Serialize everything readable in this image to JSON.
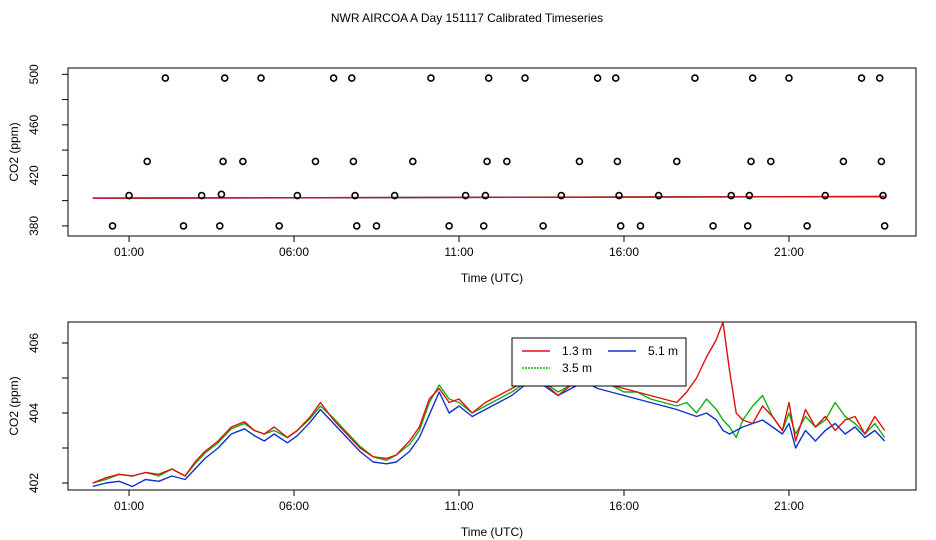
{
  "title": "NWR AIRCOA A  Day 151117  Calibrated Timeseries",
  "colors": {
    "red": "#e01010",
    "green": "#10b010",
    "blue": "#1030d0",
    "axis": "#000000"
  },
  "chart_data": [
    {
      "type": "scatter",
      "title": "NWR AIRCOA A  Day 151117  Calibrated Timeseries",
      "xlabel": "Time (UTC)",
      "ylabel": "CO2 (ppm)",
      "xlim": [
        -0.85,
        24.85
      ],
      "ylim": [
        372,
        505
      ],
      "x_ticks": [
        1,
        6,
        11,
        16,
        21
      ],
      "x_tick_labels": [
        "01:00",
        "06:00",
        "11:00",
        "16:00",
        "21:00"
      ],
      "y_ticks": [
        380,
        420,
        460,
        500
      ],
      "y_tick_labels": [
        "380",
        "420",
        "460",
        "500"
      ],
      "y_minor_ticks": [
        400,
        440,
        480
      ],
      "points": [
        {
          "x": 0.5,
          "y": 380
        },
        {
          "x": 1.0,
          "y": 404
        },
        {
          "x": 1.55,
          "y": 431
        },
        {
          "x": 2.1,
          "y": 497
        },
        {
          "x": 2.65,
          "y": 380
        },
        {
          "x": 3.2,
          "y": 404
        },
        {
          "x": 3.75,
          "y": 380
        },
        {
          "x": 3.8,
          "y": 405
        },
        {
          "x": 3.85,
          "y": 431
        },
        {
          "x": 3.9,
          "y": 497
        },
        {
          "x": 4.45,
          "y": 431
        },
        {
          "x": 5.0,
          "y": 497
        },
        {
          "x": 5.55,
          "y": 380
        },
        {
          "x": 6.1,
          "y": 404
        },
        {
          "x": 6.65,
          "y": 431
        },
        {
          "x": 7.2,
          "y": 497
        },
        {
          "x": 7.75,
          "y": 497
        },
        {
          "x": 7.8,
          "y": 431
        },
        {
          "x": 7.85,
          "y": 404
        },
        {
          "x": 7.9,
          "y": 380
        },
        {
          "x": 8.5,
          "y": 380
        },
        {
          "x": 9.05,
          "y": 404
        },
        {
          "x": 9.6,
          "y": 431
        },
        {
          "x": 10.15,
          "y": 497
        },
        {
          "x": 10.7,
          "y": 380
        },
        {
          "x": 11.2,
          "y": 404
        },
        {
          "x": 11.75,
          "y": 380
        },
        {
          "x": 11.8,
          "y": 404
        },
        {
          "x": 11.85,
          "y": 431
        },
        {
          "x": 11.9,
          "y": 497
        },
        {
          "x": 12.45,
          "y": 431
        },
        {
          "x": 13.0,
          "y": 497
        },
        {
          "x": 13.55,
          "y": 380
        },
        {
          "x": 14.1,
          "y": 404
        },
        {
          "x": 14.65,
          "y": 431
        },
        {
          "x": 15.2,
          "y": 497
        },
        {
          "x": 15.75,
          "y": 497
        },
        {
          "x": 15.8,
          "y": 431
        },
        {
          "x": 15.85,
          "y": 404
        },
        {
          "x": 15.9,
          "y": 380
        },
        {
          "x": 16.5,
          "y": 380
        },
        {
          "x": 17.05,
          "y": 404
        },
        {
          "x": 17.6,
          "y": 431
        },
        {
          "x": 18.15,
          "y": 497
        },
        {
          "x": 18.7,
          "y": 380
        },
        {
          "x": 19.25,
          "y": 404
        },
        {
          "x": 19.75,
          "y": 380
        },
        {
          "x": 19.8,
          "y": 404
        },
        {
          "x": 19.85,
          "y": 431
        },
        {
          "x": 19.9,
          "y": 497
        },
        {
          "x": 20.45,
          "y": 431
        },
        {
          "x": 21.0,
          "y": 497
        },
        {
          "x": 21.55,
          "y": 380
        },
        {
          "x": 22.1,
          "y": 404
        },
        {
          "x": 22.65,
          "y": 431
        },
        {
          "x": 23.2,
          "y": 497
        },
        {
          "x": 23.75,
          "y": 497
        },
        {
          "x": 23.8,
          "y": 431
        },
        {
          "x": 23.85,
          "y": 404
        },
        {
          "x": 23.9,
          "y": 380
        }
      ],
      "series": [
        {
          "name": "1.3 m",
          "color": "red",
          "x": [
            -0.1,
            23.9
          ],
          "y": [
            402.0,
            403.2
          ]
        },
        {
          "name": "3.5 m",
          "color": "green",
          "x": [
            -0.1,
            23.9
          ],
          "y": [
            402.0,
            403.3
          ]
        },
        {
          "name": "5.1 m",
          "color": "blue",
          "x": [
            -0.1,
            23.9
          ],
          "y": [
            401.9,
            403.2
          ]
        }
      ]
    },
    {
      "type": "line",
      "xlabel": "Time (UTC)",
      "ylabel": "CO2 (ppm)",
      "xlim": [
        -0.85,
        24.85
      ],
      "ylim": [
        401.8,
        406.6
      ],
      "x_ticks": [
        1,
        6,
        11,
        16,
        21
      ],
      "x_tick_labels": [
        "01:00",
        "06:00",
        "11:00",
        "16:00",
        "21:00"
      ],
      "y_ticks": [
        402,
        404,
        406
      ],
      "y_tick_labels": [
        "402",
        "404",
        "406"
      ],
      "y_minor_ticks": [
        403,
        405
      ],
      "legend": {
        "position": "top-center",
        "entries": [
          "1.3 m",
          "5.1 m",
          "3.5 m"
        ]
      },
      "series": [
        {
          "name": "1.3 m",
          "color": "red",
          "x": [
            -0.1,
            0.3,
            0.7,
            1.1,
            1.5,
            1.9,
            2.3,
            2.7,
            3.0,
            3.3,
            3.7,
            4.1,
            4.5,
            4.8,
            5.1,
            5.4,
            5.8,
            6.1,
            6.5,
            6.8,
            7.2,
            7.6,
            8.0,
            8.4,
            8.8,
            9.1,
            9.5,
            9.8,
            10.1,
            10.4,
            10.7,
            11.0,
            11.4,
            11.8,
            12.2,
            12.6,
            13.0,
            13.4,
            14.0,
            14.4,
            14.8,
            15.2,
            15.6,
            16.0,
            16.4,
            16.8,
            17.2,
            17.6,
            17.9,
            18.2,
            18.5,
            18.8,
            19.0,
            19.2,
            19.4,
            19.6,
            19.9,
            20.2,
            20.5,
            20.8,
            21.0,
            21.2,
            21.5,
            21.8,
            22.1,
            22.4,
            22.7,
            23.0,
            23.3,
            23.6,
            23.9
          ],
          "y": [
            402.0,
            402.15,
            402.25,
            402.2,
            402.3,
            402.25,
            402.4,
            402.2,
            402.6,
            402.9,
            403.2,
            403.6,
            403.75,
            403.5,
            403.4,
            403.6,
            403.3,
            403.5,
            403.9,
            404.3,
            403.8,
            403.4,
            403.0,
            402.75,
            402.7,
            402.8,
            403.2,
            403.6,
            404.4,
            404.7,
            404.3,
            404.4,
            404.0,
            404.3,
            404.5,
            404.7,
            404.9,
            405.0,
            404.5,
            404.8,
            405.0,
            404.9,
            404.8,
            404.7,
            404.6,
            404.5,
            404.4,
            404.3,
            404.6,
            405.0,
            405.6,
            406.1,
            406.6,
            405.2,
            404.0,
            403.8,
            403.7,
            404.2,
            403.9,
            403.5,
            404.3,
            403.2,
            404.1,
            403.6,
            403.9,
            403.5,
            403.8,
            403.9,
            403.4,
            403.9,
            403.5
          ]
        },
        {
          "name": "3.5 m",
          "color": "green",
          "x": [
            -0.1,
            0.3,
            0.7,
            1.1,
            1.5,
            1.9,
            2.3,
            2.7,
            3.0,
            3.3,
            3.7,
            4.1,
            4.5,
            4.8,
            5.1,
            5.4,
            5.8,
            6.1,
            6.5,
            6.8,
            7.2,
            7.6,
            8.0,
            8.4,
            8.8,
            9.1,
            9.5,
            9.8,
            10.1,
            10.4,
            10.7,
            11.0,
            11.4,
            11.8,
            12.2,
            12.6,
            13.0,
            13.4,
            14.0,
            14.4,
            14.8,
            15.2,
            15.6,
            16.0,
            16.4,
            16.8,
            17.2,
            17.6,
            17.9,
            18.2,
            18.5,
            18.8,
            19.0,
            19.2,
            19.4,
            19.6,
            19.9,
            20.2,
            20.5,
            20.8,
            21.0,
            21.2,
            21.5,
            21.8,
            22.1,
            22.4,
            22.7,
            23.0,
            23.3,
            23.6,
            23.9
          ],
          "y": [
            402.0,
            402.1,
            402.25,
            402.2,
            402.3,
            402.2,
            402.4,
            402.2,
            402.55,
            402.85,
            403.15,
            403.55,
            403.7,
            403.5,
            403.4,
            403.5,
            403.3,
            403.5,
            403.85,
            404.2,
            403.85,
            403.45,
            403.05,
            402.75,
            402.65,
            402.8,
            403.1,
            403.5,
            404.3,
            404.8,
            404.4,
            404.3,
            404.0,
            404.2,
            404.4,
            404.6,
            404.85,
            405.0,
            404.6,
            404.8,
            405.1,
            404.9,
            404.8,
            404.6,
            404.6,
            404.4,
            404.3,
            404.2,
            404.3,
            404.0,
            404.4,
            404.1,
            403.8,
            403.6,
            403.3,
            403.8,
            404.2,
            404.5,
            403.9,
            403.5,
            404.0,
            403.4,
            403.9,
            403.6,
            403.8,
            404.3,
            403.9,
            403.7,
            403.4,
            403.7,
            403.3
          ]
        },
        {
          "name": "5.1 m",
          "color": "blue",
          "x": [
            -0.1,
            0.3,
            0.7,
            1.1,
            1.5,
            1.9,
            2.3,
            2.7,
            3.0,
            3.3,
            3.7,
            4.1,
            4.5,
            4.8,
            5.1,
            5.4,
            5.8,
            6.1,
            6.5,
            6.8,
            7.2,
            7.6,
            8.0,
            8.4,
            8.8,
            9.1,
            9.5,
            9.8,
            10.1,
            10.4,
            10.7,
            11.0,
            11.4,
            11.8,
            12.2,
            12.6,
            13.0,
            13.4,
            14.0,
            14.4,
            14.8,
            15.2,
            15.6,
            16.0,
            16.4,
            16.8,
            17.2,
            17.6,
            17.9,
            18.2,
            18.5,
            18.8,
            19.0,
            19.2,
            19.4,
            19.6,
            19.9,
            20.2,
            20.5,
            20.8,
            21.0,
            21.2,
            21.5,
            21.8,
            22.1,
            22.4,
            22.7,
            23.0,
            23.3,
            23.6,
            23.9
          ],
          "y": [
            401.9,
            402.0,
            402.05,
            401.9,
            402.1,
            402.05,
            402.2,
            402.1,
            402.4,
            402.7,
            403.0,
            403.4,
            403.55,
            403.35,
            403.2,
            403.4,
            403.15,
            403.35,
            403.75,
            404.1,
            403.7,
            403.3,
            402.9,
            402.6,
            402.55,
            402.6,
            402.9,
            403.3,
            403.95,
            404.6,
            404.0,
            404.2,
            403.9,
            404.1,
            404.3,
            404.5,
            404.8,
            404.9,
            404.5,
            404.7,
            404.9,
            404.7,
            404.6,
            404.5,
            404.4,
            404.3,
            404.2,
            404.1,
            404.0,
            403.9,
            404.0,
            403.8,
            403.5,
            403.4,
            403.5,
            403.6,
            403.7,
            403.8,
            403.6,
            403.4,
            403.7,
            403.0,
            403.5,
            403.2,
            403.5,
            403.7,
            403.4,
            403.6,
            403.3,
            403.5,
            403.2
          ]
        }
      ]
    }
  ]
}
